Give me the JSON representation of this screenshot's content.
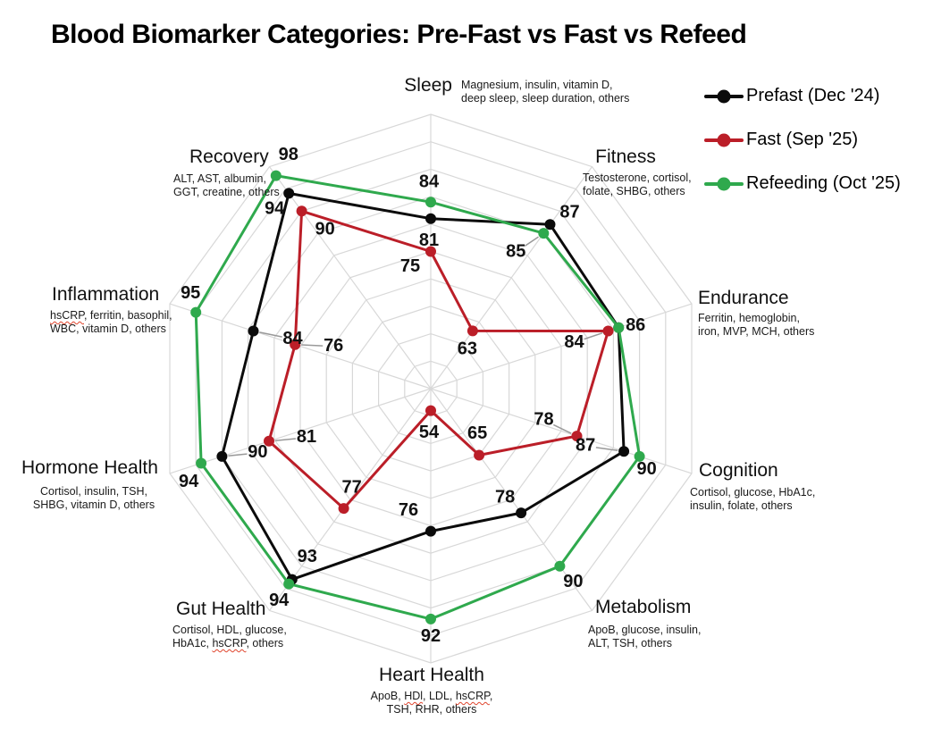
{
  "page": {
    "title": "Blood Biomarker Categories: Pre-Fast vs Fast vs Refeed"
  },
  "legend": {
    "position": "top-right",
    "items": [
      {
        "label": "Prefast (Dec '24)",
        "color": "#0b0b0b"
      },
      {
        "label": "Fast (Sep '25)",
        "color": "#bb1e28"
      },
      {
        "label": "Refeeding (Oct '25)",
        "color": "#2fa94d"
      }
    ]
  },
  "chart_data": {
    "type": "radar",
    "title": "Blood Biomarker Categories: Pre-Fast vs Fast vs Refeed",
    "axis_range": [
      50,
      100
    ],
    "ring_step": 5,
    "grid": true,
    "grid_color": "#d8d8d8",
    "value_label_color": "#111111",
    "categories": [
      {
        "name": "Sleep",
        "sub": [
          "Magnesium, insulin, vitamin D,",
          "deep sleep, sleep duration, others"
        ],
        "misspelled": []
      },
      {
        "name": "Fitness",
        "sub": [
          "Testosterone, cortisol,",
          "folate, SHBG, others"
        ],
        "misspelled": []
      },
      {
        "name": "Endurance",
        "sub": [
          "Ferritin, hemoglobin,",
          "iron, MVP, MCH, others"
        ],
        "misspelled": []
      },
      {
        "name": "Cognition",
        "sub": [
          "Cortisol, glucose, HbA1c,",
          "insulin, folate, others"
        ],
        "misspelled": []
      },
      {
        "name": "Metabolism",
        "sub": [
          "ApoB, glucose, insulin,",
          "ALT, TSH, others"
        ],
        "misspelled": []
      },
      {
        "name": "Heart Health",
        "sub": [
          "ApoB, HDl, LDL, hsCRP,",
          "TSH, RHR, others"
        ],
        "misspelled": [
          "HDl",
          "hsCRP"
        ]
      },
      {
        "name": "Gut Health",
        "sub": [
          "Cortisol, HDL, glucose,",
          "HbA1c, hsCRP, others"
        ],
        "misspelled": [
          "hsCRP"
        ]
      },
      {
        "name": "Hormone Health",
        "sub": [
          "Cortisol, insulin, TSH,",
          "SHBG, vitamin D, others"
        ],
        "misspelled": []
      },
      {
        "name": "Inflammation",
        "sub": [
          "hsCRP, ferritin, basophil,",
          "WBC, vitamin D, others"
        ],
        "misspelled": [
          "hsCRP"
        ]
      },
      {
        "name": "Recovery",
        "sub": [
          "ALT, AST, albumin,",
          "GGT, creatine, others"
        ],
        "misspelled": []
      }
    ],
    "series": [
      {
        "name": "Prefast (Dec '24)",
        "color": "#0b0b0b",
        "values": [
          81,
          87,
          86,
          87,
          78,
          76,
          93,
          90,
          84,
          94
        ]
      },
      {
        "name": "Fast (Sep '25)",
        "color": "#bb1e28",
        "values": [
          75,
          63,
          84,
          78,
          65,
          54,
          77,
          81,
          76,
          90
        ]
      },
      {
        "name": "Refeeding (Oct '25)",
        "color": "#2fa94d",
        "values": [
          84,
          85,
          86,
          90,
          90,
          92,
          94,
          94,
          95,
          98
        ]
      }
    ]
  }
}
